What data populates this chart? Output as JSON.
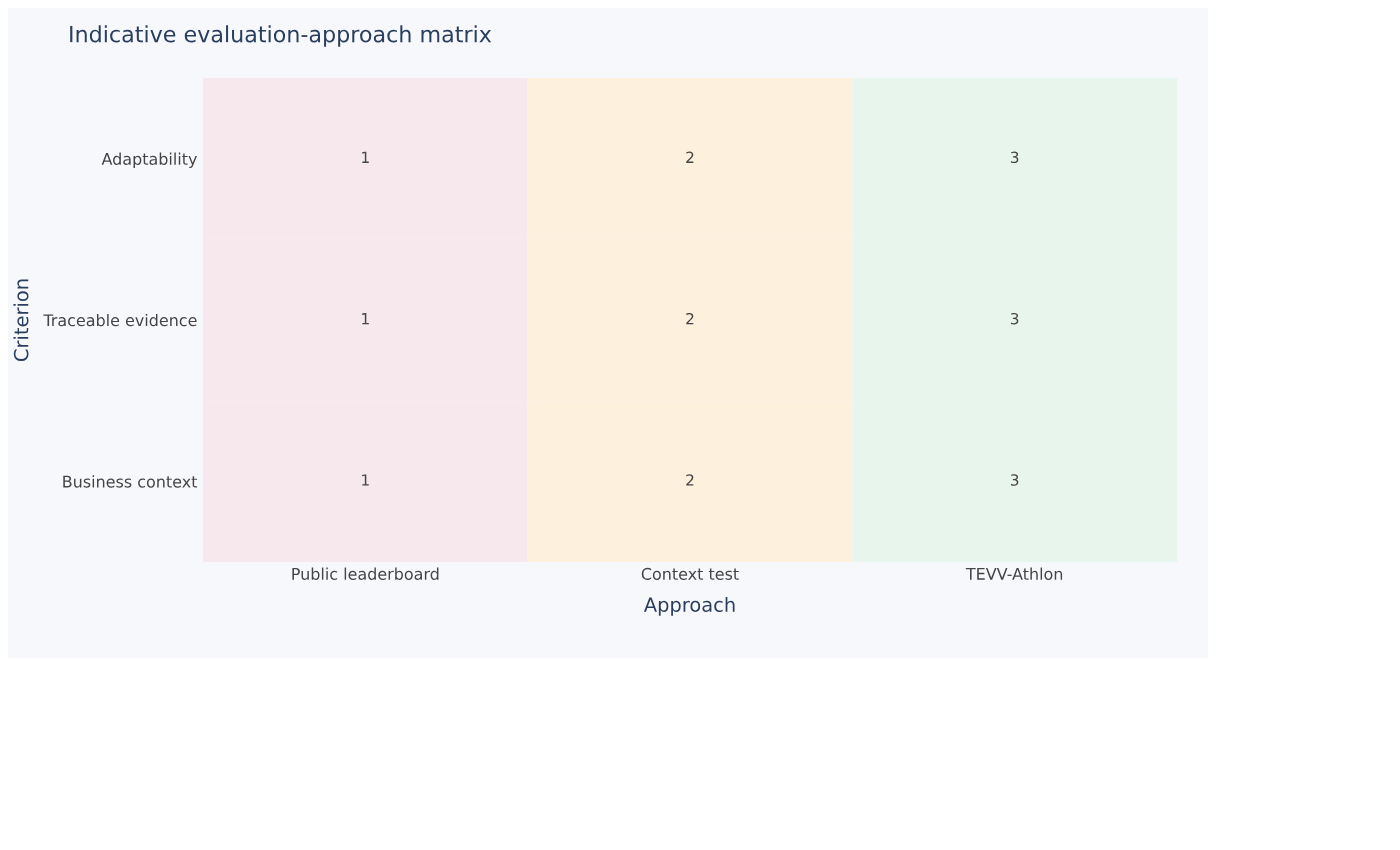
{
  "chart_data": {
    "type": "heatmap",
    "title": "Indicative evaluation-approach matrix",
    "xlabel": "Approach",
    "ylabel": "Criterion",
    "categories": [
      "Public leaderboard",
      "Context test",
      "TEVV-Athlon"
    ],
    "y_categories": [
      "Adaptability",
      "Traceable evidence",
      "Business context"
    ],
    "cells": [
      [
        1,
        2,
        3
      ],
      [
        1,
        2,
        3
      ],
      [
        1,
        2,
        3
      ]
    ],
    "colors": [
      "#f7e8ee",
      "#fdf0dc",
      "#e8f5ec"
    ],
    "data_labels": true
  }
}
